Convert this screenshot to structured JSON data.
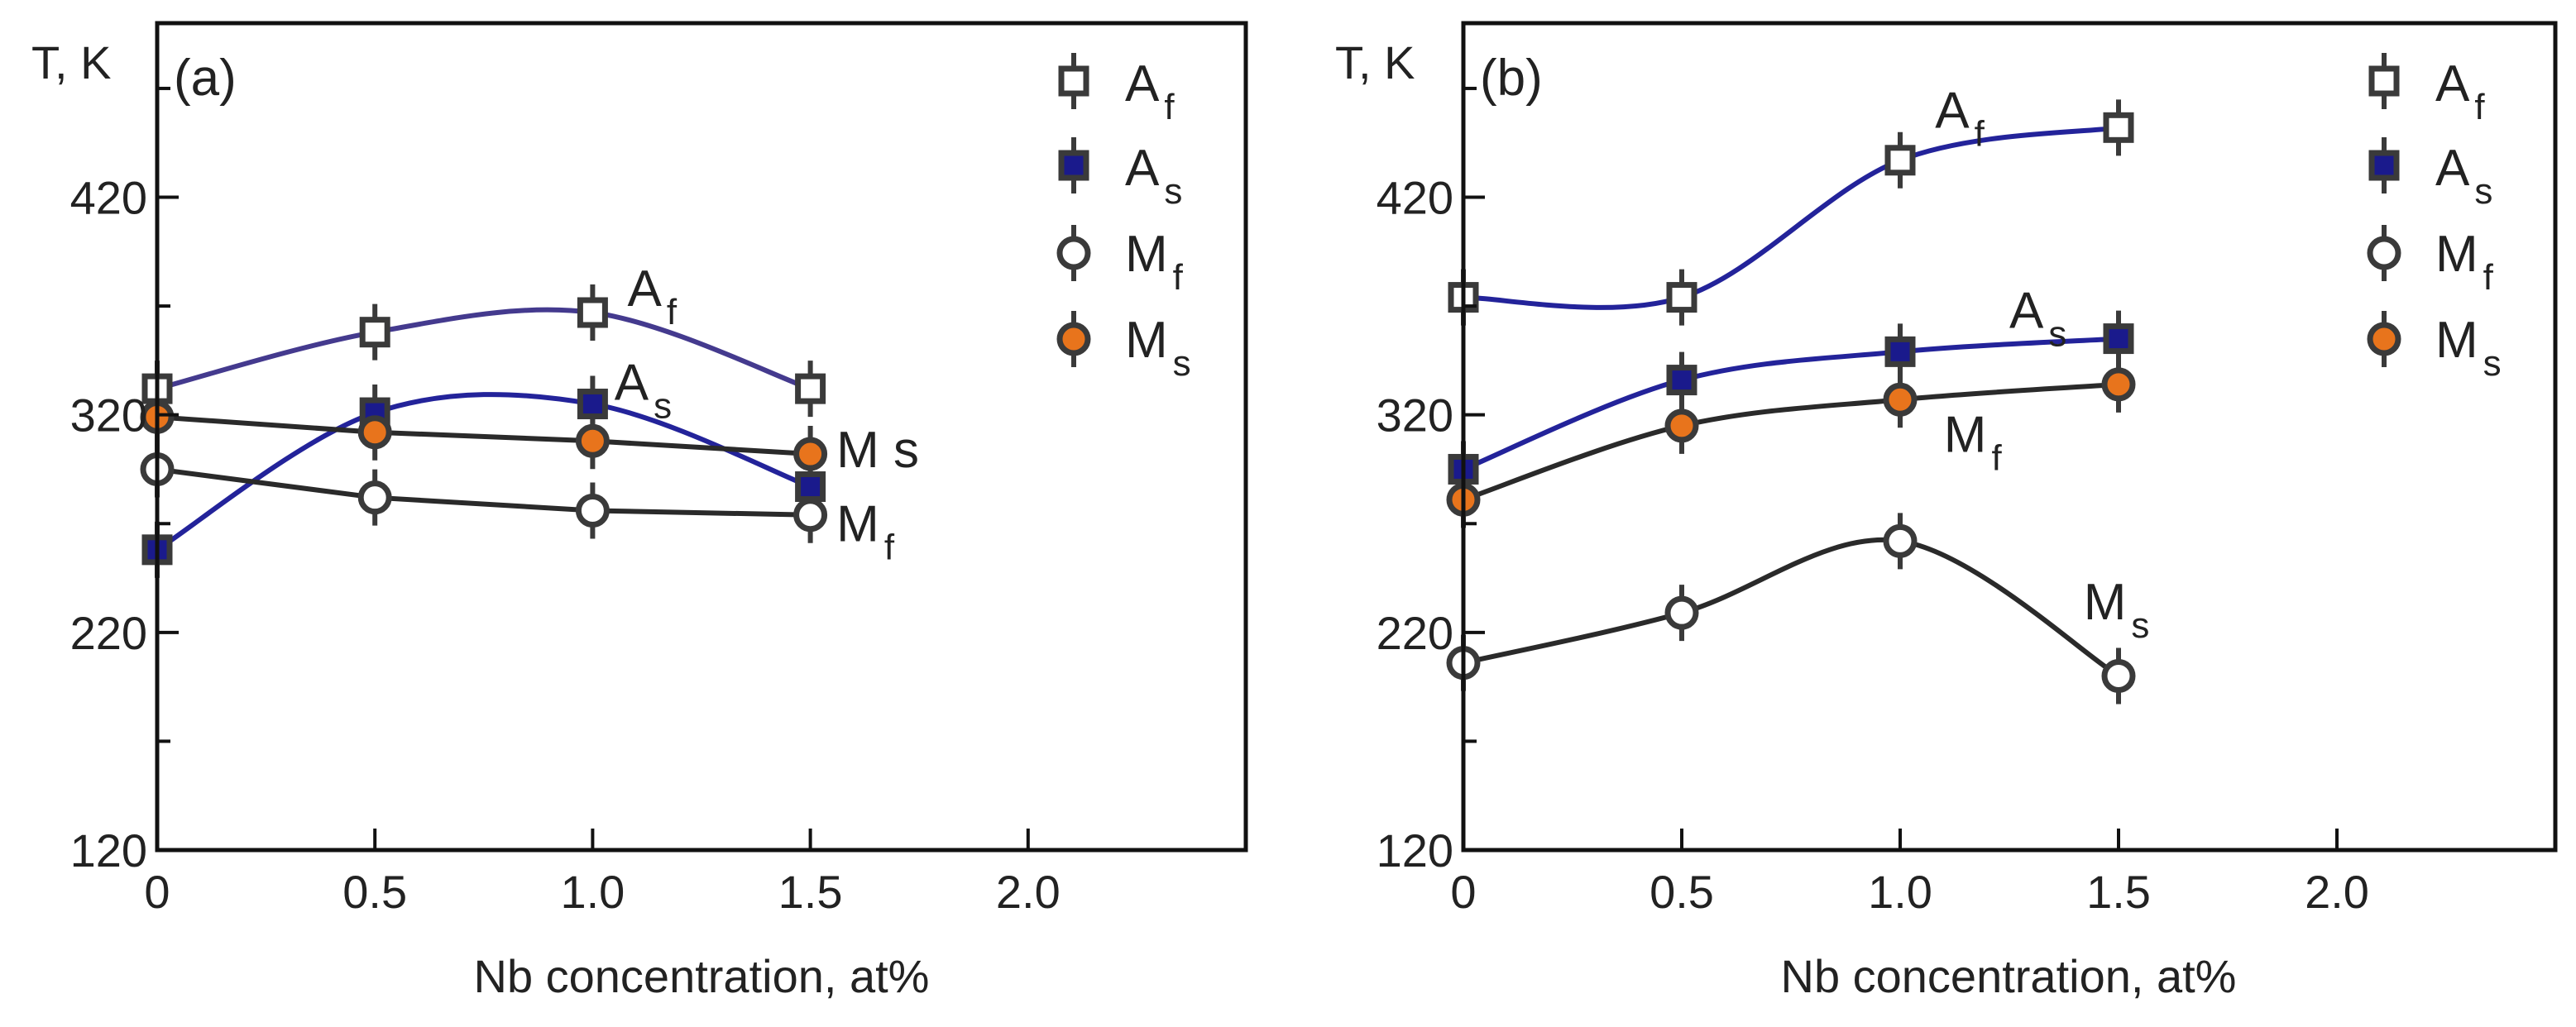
{
  "colors": {
    "Af_marker": "#ffffff",
    "As_marker": "#1a1a8c",
    "Mf_marker": "#ffffff",
    "Ms_marker": "#e8741c",
    "marker_edge": "#3a3a3a",
    "curve_blue": "#23239a",
    "curve_purple": "#443a8e",
    "curve_dark": "#2a2a2a"
  },
  "chart_data": [
    {
      "type": "scatter",
      "panel": "(a)",
      "ylabel": "T, K",
      "xlabel": "Nb concentration, at%",
      "xlim": [
        0,
        2.5
      ],
      "ylim": [
        120,
        500
      ],
      "xticks": [
        0,
        0.5,
        1.0,
        1.5,
        2.0
      ],
      "xtick_labels": [
        "0",
        "0.5",
        "1.0",
        "1.5",
        "2.0"
      ],
      "yticks": [
        120,
        170,
        220,
        270,
        320,
        370,
        420,
        470
      ],
      "ytick_labels": [
        "120",
        "",
        "220",
        "",
        "320",
        "",
        "420",
        ""
      ],
      "legend": [
        {
          "key": "Af",
          "main": "A",
          "sub": "f"
        },
        {
          "key": "As",
          "main": "A",
          "sub": "s"
        },
        {
          "key": "Mf",
          "main": "M",
          "sub": "f"
        },
        {
          "key": "Ms",
          "main": "M",
          "sub": "s"
        }
      ],
      "legend_position": "top-right",
      "series": [
        {
          "name": "Af",
          "marker": "open-square",
          "x": [
            0,
            0.5,
            1.0,
            1.5
          ],
          "y": [
            332,
            358,
            367,
            332
          ],
          "curve": "smooth",
          "curve_color": "purple"
        },
        {
          "name": "As",
          "marker": "filled-square",
          "x": [
            0,
            0.5,
            1.0,
            1.5
          ],
          "y": [
            258,
            321,
            325,
            287
          ],
          "curve": "smooth",
          "curve_color": "blue"
        },
        {
          "name": "Mf",
          "marker": "open-circle",
          "x": [
            0,
            0.5,
            1.0,
            1.5
          ],
          "y": [
            295,
            282,
            276,
            274
          ],
          "curve": "linear",
          "curve_color": "dark"
        },
        {
          "name": "Ms",
          "marker": "filled-circle",
          "x": [
            0,
            0.5,
            1.0,
            1.5
          ],
          "y": [
            319,
            312,
            308,
            302
          ],
          "curve": "linear",
          "curve_color": "dark"
        }
      ],
      "annotations": [
        {
          "main": "A",
          "sub": "f",
          "x": 1.08,
          "y": 370
        },
        {
          "main": "A",
          "sub": "s",
          "x": 1.05,
          "y": 327
        },
        {
          "main": "M s",
          "sub": "",
          "x": 1.56,
          "y": 296
        },
        {
          "main": "M",
          "sub": "f",
          "x": 1.56,
          "y": 262
        }
      ]
    },
    {
      "type": "scatter",
      "panel": "(b)",
      "ylabel": "T, K",
      "xlabel": "Nb concentration, at%",
      "xlim": [
        0,
        2.5
      ],
      "ylim": [
        120,
        500
      ],
      "xticks": [
        0,
        0.5,
        1.0,
        1.5,
        2.0
      ],
      "xtick_labels": [
        "0",
        "0.5",
        "1.0",
        "1.5",
        "2.0"
      ],
      "yticks": [
        120,
        170,
        220,
        270,
        320,
        370,
        420,
        470
      ],
      "ytick_labels": [
        "120",
        "",
        "220",
        "",
        "320",
        "",
        "420",
        ""
      ],
      "legend": [
        {
          "key": "Af",
          "main": "A",
          "sub": "f"
        },
        {
          "key": "As",
          "main": "A",
          "sub": "s"
        },
        {
          "key": "Mf",
          "main": "M",
          "sub": "f"
        },
        {
          "key": "Ms",
          "main": "M",
          "sub": "s"
        }
      ],
      "legend_position": "top-right",
      "series": [
        {
          "name": "Af",
          "marker": "open-square",
          "x": [
            0,
            0.5,
            1.0,
            1.5
          ],
          "y": [
            374,
            374,
            437,
            452
          ],
          "curve": "smooth",
          "curve_color": "blue"
        },
        {
          "name": "As",
          "marker": "filled-square",
          "x": [
            0,
            0.5,
            1.0,
            1.5
          ],
          "y": [
            295,
            336,
            349,
            355
          ],
          "curve": "smooth",
          "curve_color": "blue"
        },
        {
          "name": "Mf",
          "marker": "open-circle",
          "x": [
            0,
            0.5,
            1.0,
            1.5
          ],
          "y": [
            206,
            229,
            262,
            200
          ],
          "curve": "smooth",
          "curve_color": "dark"
        },
        {
          "name": "Ms",
          "marker": "filled-circle",
          "x": [
            0,
            0.5,
            1.0,
            1.5
          ],
          "y": [
            281,
            315,
            327,
            334
          ],
          "curve": "smooth",
          "curve_color": "dark"
        }
      ],
      "annotations": [
        {
          "main": "A",
          "sub": "f",
          "x": 1.08,
          "y": 452
        },
        {
          "main": "A",
          "sub": "s",
          "x": 1.25,
          "y": 360
        },
        {
          "main": "M",
          "sub": "f",
          "x": 1.1,
          "y": 303
        },
        {
          "main": "M",
          "sub": "s",
          "x": 1.42,
          "y": 226
        }
      ]
    }
  ]
}
